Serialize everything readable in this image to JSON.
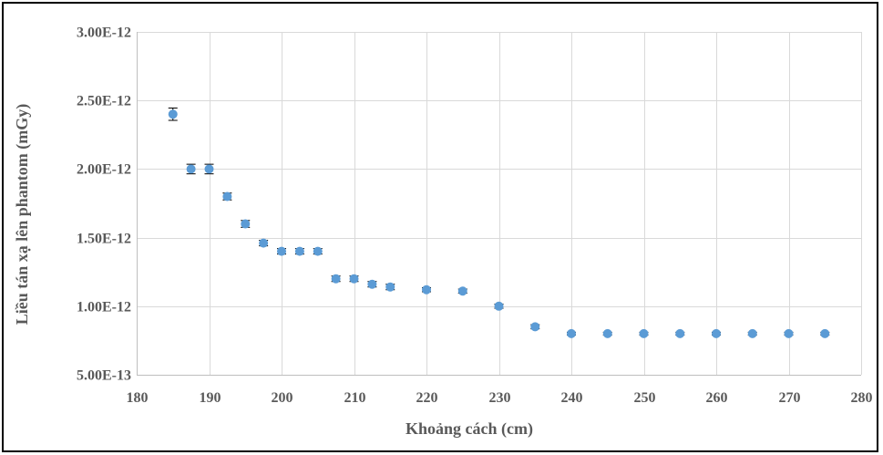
{
  "chart_data": {
    "type": "scatter",
    "title": "",
    "xlabel": "Khoảng cách (cm)",
    "ylabel": "Liều tán xạ lên phantom (mGy)",
    "xlim": [
      180,
      280
    ],
    "ylim": [
      5e-13,
      3e-12
    ],
    "x_ticks": [
      180,
      190,
      200,
      210,
      220,
      230,
      240,
      250,
      260,
      270,
      280
    ],
    "x_tick_labels": [
      "180",
      "190",
      "200",
      "210",
      "220",
      "230",
      "240",
      "250",
      "260",
      "270",
      "280"
    ],
    "y_ticks": [
      5e-13,
      1e-12,
      1.5e-12,
      2e-12,
      2.5e-12,
      3e-12
    ],
    "y_tick_labels": [
      "5.00E-13",
      "1.00E-12",
      "1.50E-12",
      "2.00E-12",
      "2.50E-12",
      "3.00E-12"
    ],
    "grid": true,
    "legend": "none",
    "marker_color": "#5b9bd5",
    "errorbar_color": "#000000",
    "series": [
      {
        "x": [
          185,
          187.5,
          190,
          192.5,
          195,
          197.5,
          200,
          202.5,
          205,
          207.5,
          210,
          212.5,
          215,
          220,
          225,
          230,
          235,
          240,
          245,
          250,
          255,
          260,
          265,
          270,
          275
        ],
        "y": [
          2.4e-12,
          2e-12,
          2e-12,
          1.8e-12,
          1.6e-12,
          1.46e-12,
          1.4e-12,
          1.4e-12,
          1.4e-12,
          1.2e-12,
          1.2e-12,
          1.16e-12,
          1.14e-12,
          1.12e-12,
          1.11e-12,
          1e-12,
          8.5e-13,
          8e-13,
          8e-13,
          8e-13,
          8e-13,
          8e-13,
          8e-13,
          8e-13,
          8e-13
        ],
        "y_error": [
          4.5e-14,
          3.5e-14,
          3.5e-14,
          2.5e-14,
          2.5e-14,
          2e-14,
          2e-14,
          2e-14,
          2e-14,
          2e-14,
          2e-14,
          2e-14,
          2e-14,
          1.5e-14,
          1.5e-14,
          1.5e-14,
          1.5e-14,
          1e-14,
          1e-14,
          1e-14,
          1e-14,
          1e-14,
          1e-14,
          1e-14,
          1e-14
        ]
      }
    ]
  }
}
